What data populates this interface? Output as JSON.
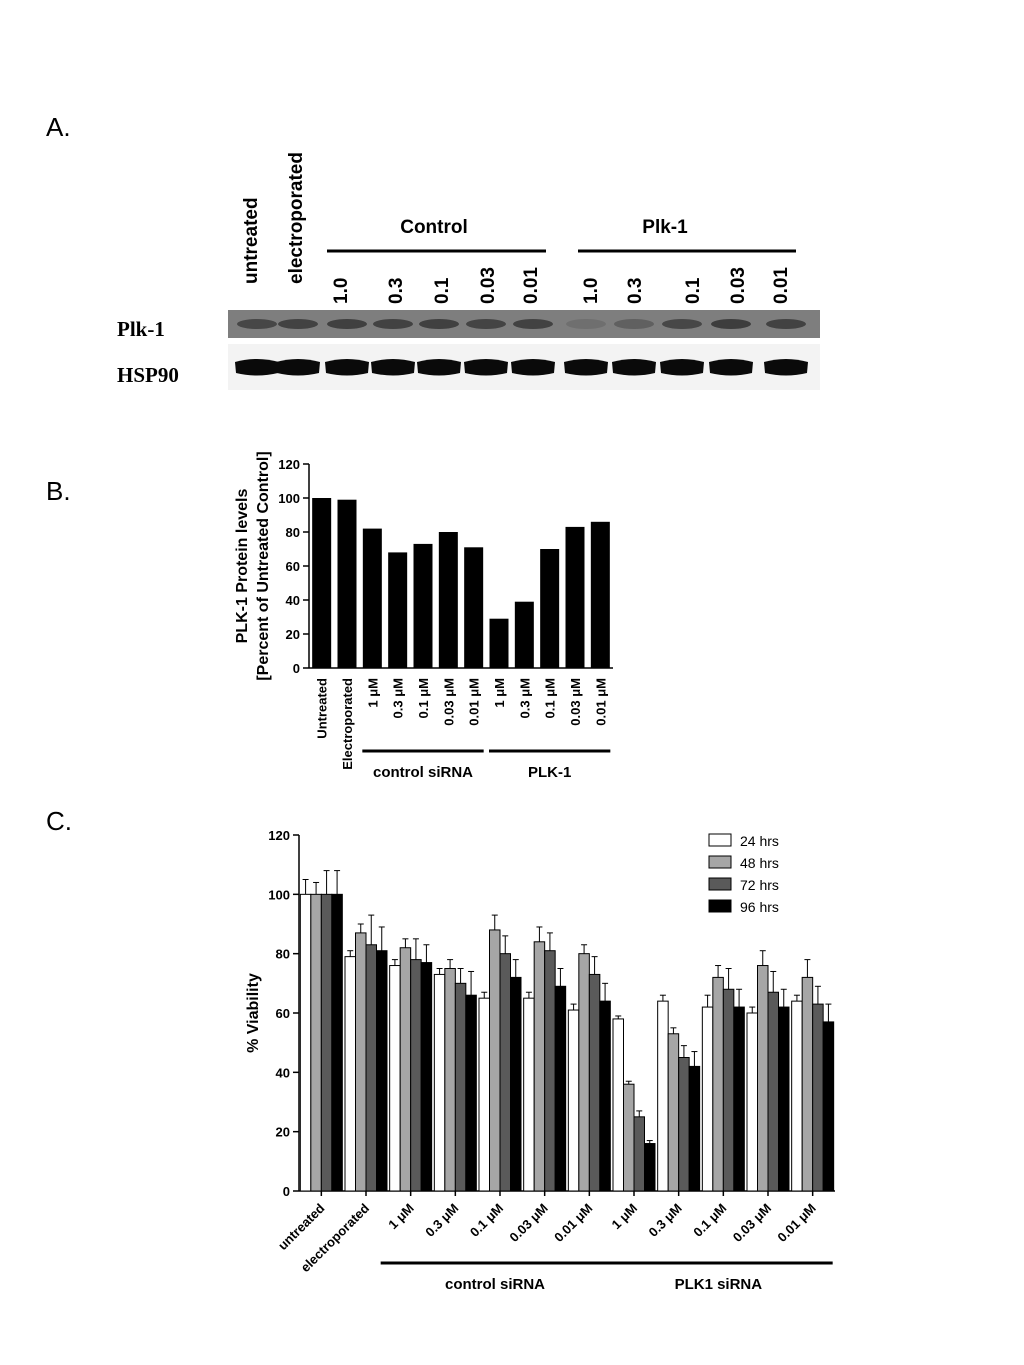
{
  "panels": {
    "a": "A.",
    "b": "B.",
    "c": "C."
  },
  "blot": {
    "lane_headers": [
      "untreated",
      "electroporated"
    ],
    "group_headers": [
      "Control",
      "Plk-1"
    ],
    "concentrations": [
      "1.0",
      "0.3",
      "0.1",
      "0.03",
      "0.01",
      "1.0",
      "0.3",
      "0.1",
      "0.03",
      "0.01"
    ],
    "rows": [
      "Plk-1",
      "HSP90"
    ],
    "plk1_band_intensity": [
      0.55,
      0.6,
      0.62,
      0.6,
      0.62,
      0.58,
      0.6,
      0.15,
      0.3,
      0.55,
      0.65,
      0.6,
      0.62
    ],
    "hsp90_band_intensity": [
      1,
      1,
      1,
      1,
      1,
      1,
      1,
      1,
      1,
      1,
      1,
      1,
      1
    ]
  },
  "chart_data": [
    {
      "type": "bar",
      "categories": [
        "Untreated",
        "Electroporated",
        "1 μM",
        "0.3 μM",
        "0.1 μM",
        "0.03 μM",
        "0.01 μM",
        "1 μM",
        "0.3 μM",
        "0.1 μM",
        "0.03 μM",
        "0.01 μM"
      ],
      "values": [
        100,
        99,
        82,
        68,
        73,
        80,
        71,
        29,
        39,
        70,
        83,
        86
      ],
      "ylabel_line1": "PLK-1 Protein levels",
      "ylabel_line2": "[Percent of Untreated Control]",
      "ylim": [
        0,
        120
      ],
      "yticks": [
        "0",
        "20",
        "40",
        "60",
        "80",
        "100",
        "120"
      ],
      "groups": [
        "control siRNA",
        "PLK-1"
      ],
      "grid": false,
      "bar_color": "#000000"
    },
    {
      "type": "bar",
      "categories": [
        "untreated",
        "electroporated",
        "1 μM",
        "0.3 μM",
        "0.1 μM",
        "0.03 μM",
        "0.01 μM",
        "1 μM",
        "0.3 μM",
        "0.1 μM",
        "0.03 μM",
        "0.01 μM"
      ],
      "ylabel": "% Viability",
      "ylim": [
        0,
        120
      ],
      "yticks": [
        "0",
        "20",
        "40",
        "60",
        "80",
        "100",
        "120"
      ],
      "groups": [
        "control siRNA",
        "PLK1 siRNA"
      ],
      "legend_position": "top-right",
      "grid": false,
      "series": [
        {
          "name": "24 hrs",
          "color": "#ffffff",
          "values": [
            100,
            79,
            76,
            73,
            65,
            65,
            61,
            58,
            64,
            62,
            60,
            64
          ],
          "errors": [
            5,
            2,
            2,
            2,
            2,
            2,
            2,
            1,
            2,
            4,
            2,
            2
          ]
        },
        {
          "name": "48 hrs",
          "color": "#a6a6a6",
          "values": [
            100,
            87,
            82,
            75,
            88,
            84,
            80,
            36,
            53,
            72,
            76,
            72
          ],
          "errors": [
            4,
            3,
            3,
            3,
            5,
            5,
            3,
            1,
            2,
            4,
            5,
            6
          ]
        },
        {
          "name": "72 hrs",
          "color": "#5a5a5a",
          "values": [
            100,
            83,
            78,
            70,
            80,
            81,
            73,
            25,
            45,
            68,
            67,
            63
          ],
          "errors": [
            8,
            10,
            7,
            5,
            6,
            6,
            6,
            2,
            4,
            7,
            7,
            6
          ]
        },
        {
          "name": "96 hrs",
          "color": "#000000",
          "values": [
            100,
            81,
            77,
            66,
            72,
            69,
            64,
            16,
            42,
            62,
            62,
            57
          ],
          "errors": [
            8,
            8,
            6,
            8,
            6,
            6,
            6,
            1,
            5,
            6,
            6,
            6
          ]
        }
      ]
    }
  ]
}
